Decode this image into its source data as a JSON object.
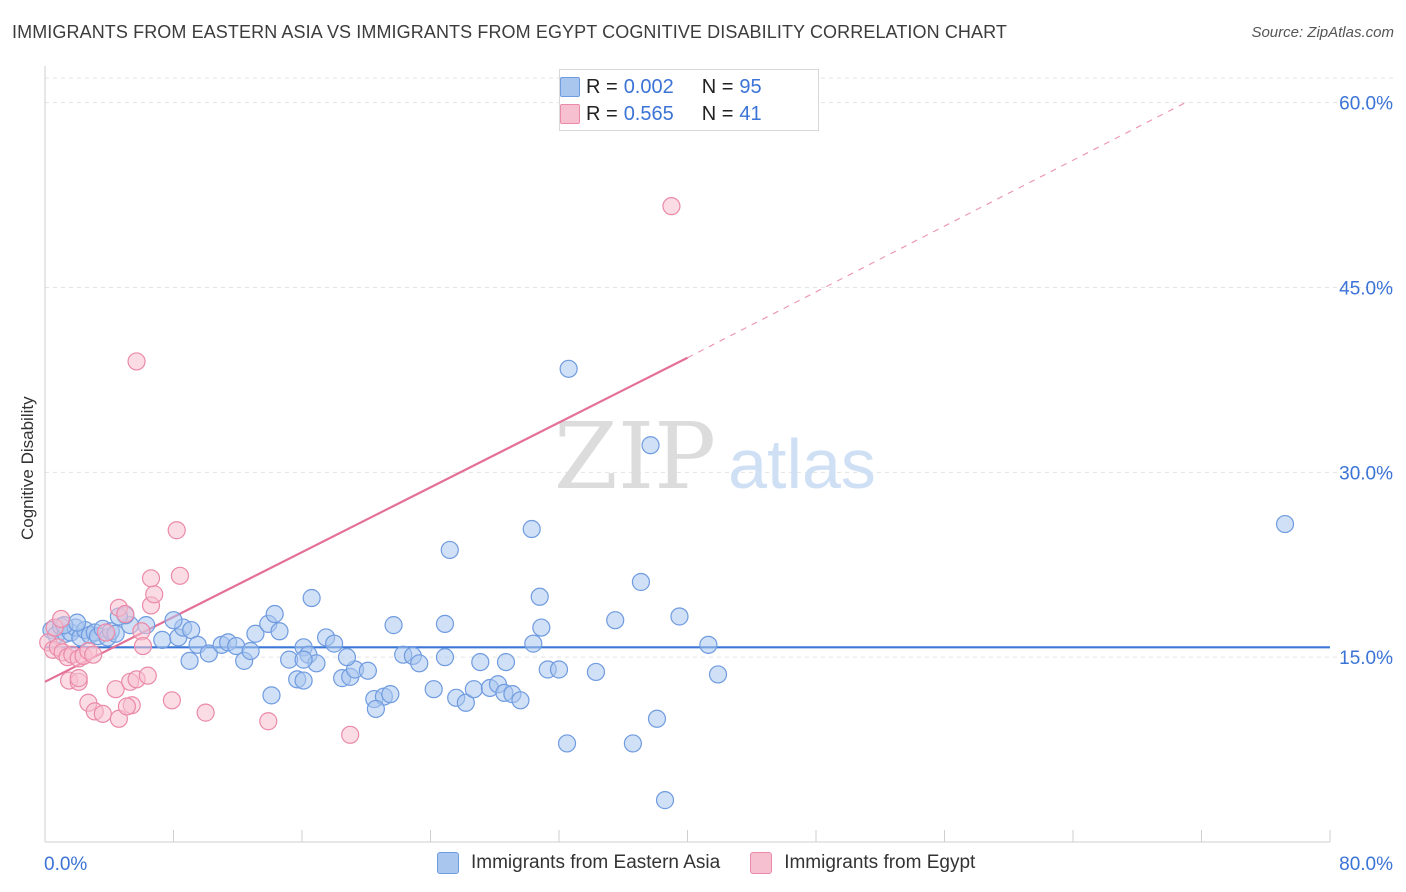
{
  "title": "IMMIGRANTS FROM EASTERN ASIA VS IMMIGRANTS FROM EGYPT COGNITIVE DISABILITY CORRELATION CHART",
  "source": "Source: ZipAtlas.com",
  "watermark": {
    "zip": "ZIP",
    "atlas": "atlas"
  },
  "legend": {
    "r_label": "R =",
    "n_label": "N =",
    "rows": [
      {
        "r": "0.002",
        "n": "95",
        "color": "#a9c6ef",
        "border": "#6f9be0"
      },
      {
        "r": "0.565",
        "n": "41",
        "color": "#f7c0d0",
        "border": "#ea8aa8"
      }
    ]
  },
  "colors": {
    "blue": "#3b78d6",
    "blue_fill": "#a9c6ef",
    "pink": "#e46f97",
    "pink_fill": "#f7c0d0",
    "axis_text": "#3b73d6"
  },
  "chart_data": {
    "type": "scatter",
    "ylabel": "Cognitive Disability",
    "xlim": [
      0,
      80
    ],
    "ylim": [
      0,
      62
    ],
    "x_tick_labels": [
      "0.0%",
      "80.0%"
    ],
    "y_ticks": [
      15,
      30,
      45,
      60
    ],
    "y_tick_labels": [
      "15.0%",
      "30.0%",
      "45.0%",
      "60.0%"
    ],
    "grid": "horizontal dashed",
    "legend_position": "top-center",
    "series": [
      {
        "name": "Immigrants from Eastern Asia",
        "trend": {
          "x0": 0,
          "y0": 15.8,
          "x1": 80,
          "y1": 15.8
        },
        "points": [
          [
            0.4,
            17.2
          ],
          [
            0.7,
            16.8
          ],
          [
            1.0,
            17.5
          ],
          [
            1.3,
            16.9
          ],
          [
            1.6,
            17.0
          ],
          [
            1.9,
            17.4
          ],
          [
            2.2,
            16.6
          ],
          [
            2.5,
            17.2
          ],
          [
            2.8,
            16.8
          ],
          [
            3.1,
            17.0
          ],
          [
            3.3,
            16.7
          ],
          [
            3.6,
            17.3
          ],
          [
            3.9,
            16.6
          ],
          [
            4.1,
            17.1
          ],
          [
            4.4,
            16.9
          ],
          [
            1.2,
            17.6
          ],
          [
            2.0,
            17.8
          ],
          [
            5.3,
            17.6
          ],
          [
            5.0,
            18.4
          ],
          [
            4.6,
            18.3
          ],
          [
            6.3,
            17.6
          ],
          [
            7.3,
            16.4
          ],
          [
            8.3,
            16.6
          ],
          [
            8.6,
            17.4
          ],
          [
            8.0,
            18.0
          ],
          [
            9.1,
            17.2
          ],
          [
            9.5,
            16.0
          ],
          [
            10.2,
            15.3
          ],
          [
            9.0,
            14.7
          ],
          [
            11.0,
            16.0
          ],
          [
            11.4,
            16.2
          ],
          [
            11.9,
            15.9
          ],
          [
            12.4,
            14.7
          ],
          [
            12.8,
            15.5
          ],
          [
            13.1,
            16.9
          ],
          [
            13.9,
            17.7
          ],
          [
            14.3,
            18.5
          ],
          [
            15.2,
            14.8
          ],
          [
            14.6,
            17.1
          ],
          [
            14.1,
            11.9
          ],
          [
            16.1,
            15.8
          ],
          [
            16.4,
            15.2
          ],
          [
            15.7,
            13.2
          ],
          [
            16.1,
            13.1
          ],
          [
            16.9,
            14.5
          ],
          [
            17.5,
            16.6
          ],
          [
            18.0,
            16.1
          ],
          [
            18.5,
            13.3
          ],
          [
            19.0,
            13.4
          ],
          [
            19.3,
            14.0
          ],
          [
            18.8,
            15.0
          ],
          [
            20.1,
            13.9
          ],
          [
            20.5,
            11.6
          ],
          [
            21.1,
            11.8
          ],
          [
            21.5,
            12.0
          ],
          [
            22.3,
            15.2
          ],
          [
            22.9,
            15.1
          ],
          [
            23.3,
            14.5
          ],
          [
            24.2,
            12.4
          ],
          [
            24.9,
            15.0
          ],
          [
            25.6,
            11.7
          ],
          [
            26.2,
            11.3
          ],
          [
            26.7,
            12.4
          ],
          [
            27.7,
            12.5
          ],
          [
            28.2,
            12.8
          ],
          [
            28.6,
            12.1
          ],
          [
            29.1,
            12.0
          ],
          [
            29.6,
            11.5
          ],
          [
            27.1,
            14.6
          ],
          [
            28.7,
            14.6
          ],
          [
            30.4,
            16.1
          ],
          [
            31.3,
            14.0
          ],
          [
            32.0,
            14.0
          ],
          [
            32.5,
            8.0
          ],
          [
            36.6,
            8.0
          ],
          [
            38.1,
            10.0
          ],
          [
            39.5,
            18.3
          ],
          [
            41.3,
            16.0
          ],
          [
            41.9,
            13.6
          ],
          [
            25.2,
            23.7
          ],
          [
            30.3,
            25.4
          ],
          [
            30.9,
            17.4
          ],
          [
            30.8,
            19.9
          ],
          [
            34.3,
            13.8
          ],
          [
            35.5,
            18.0
          ],
          [
            37.1,
            21.1
          ],
          [
            38.6,
            3.4
          ],
          [
            37.7,
            32.2
          ],
          [
            32.6,
            38.4
          ],
          [
            16.6,
            19.8
          ],
          [
            21.7,
            17.6
          ],
          [
            24.9,
            17.7
          ],
          [
            20.6,
            10.8
          ],
          [
            16.1,
            14.8
          ],
          [
            77.2,
            25.8
          ]
        ]
      },
      {
        "name": "Immigrants from Egypt",
        "trend": {
          "x0": 0,
          "y0": 13.0,
          "x1": 40,
          "y1": 39.3
        },
        "trend_extension": {
          "x0": 40,
          "y0": 39.3,
          "x1": 71,
          "y1": 60.0
        },
        "points": [
          [
            0.2,
            16.2
          ],
          [
            0.5,
            15.6
          ],
          [
            0.8,
            15.8
          ],
          [
            1.1,
            15.4
          ],
          [
            1.4,
            15.0
          ],
          [
            1.7,
            15.2
          ],
          [
            2.1,
            14.9
          ],
          [
            2.4,
            15.1
          ],
          [
            2.7,
            15.5
          ],
          [
            3.0,
            15.2
          ],
          [
            0.6,
            17.4
          ],
          [
            1.0,
            18.1
          ],
          [
            1.5,
            13.1
          ],
          [
            2.1,
            13.0
          ],
          [
            2.7,
            11.3
          ],
          [
            3.1,
            10.6
          ],
          [
            3.6,
            10.4
          ],
          [
            4.4,
            12.4
          ],
          [
            4.6,
            10.0
          ],
          [
            5.3,
            13.0
          ],
          [
            5.4,
            11.1
          ],
          [
            5.1,
            11.0
          ],
          [
            5.7,
            13.2
          ],
          [
            6.4,
            13.5
          ],
          [
            4.6,
            19.0
          ],
          [
            5.0,
            18.5
          ],
          [
            6.0,
            17.1
          ],
          [
            6.6,
            19.2
          ],
          [
            6.8,
            20.1
          ],
          [
            6.6,
            21.4
          ],
          [
            8.4,
            21.6
          ],
          [
            8.2,
            25.3
          ],
          [
            5.7,
            39.0
          ],
          [
            7.9,
            11.5
          ],
          [
            10.0,
            10.5
          ],
          [
            13.9,
            9.8
          ],
          [
            19.0,
            8.7
          ],
          [
            39.0,
            51.6
          ],
          [
            3.8,
            17.0
          ],
          [
            6.1,
            15.9
          ],
          [
            2.1,
            13.3
          ]
        ]
      }
    ]
  }
}
